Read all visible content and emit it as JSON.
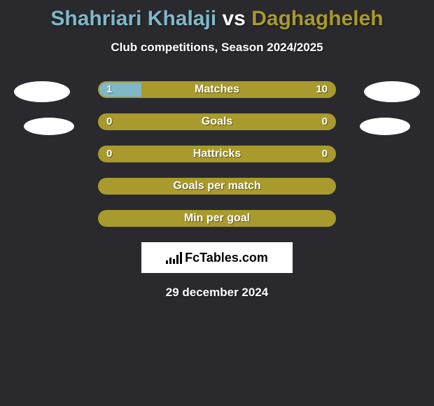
{
  "colors": {
    "background": "#2a2a2e",
    "player1": "#7fb8c9",
    "player2": "#a89a2c",
    "bar_border": "#a89a2c",
    "bar_bg": "#a89a2c",
    "white": "#ffffff"
  },
  "header": {
    "player1_name": "Shahriari Khalaji",
    "vs": "vs",
    "player2_name": "Daghagheleh",
    "subtitle": "Club competitions, Season 2024/2025"
  },
  "stats": [
    {
      "label": "Matches",
      "left_val": "1",
      "right_val": "10",
      "fill_pct": 18,
      "show_vals": true
    },
    {
      "label": "Goals",
      "left_val": "0",
      "right_val": "0",
      "fill_pct": 0,
      "show_vals": true
    },
    {
      "label": "Hattricks",
      "left_val": "0",
      "right_val": "0",
      "fill_pct": 0,
      "show_vals": true
    },
    {
      "label": "Goals per match",
      "left_val": "",
      "right_val": "",
      "fill_pct": 0,
      "show_vals": false
    },
    {
      "label": "Min per goal",
      "left_val": "",
      "right_val": "",
      "fill_pct": 0,
      "show_vals": false
    }
  ],
  "footer": {
    "logo_text": "FcTables.com",
    "date": "29 december 2024"
  }
}
